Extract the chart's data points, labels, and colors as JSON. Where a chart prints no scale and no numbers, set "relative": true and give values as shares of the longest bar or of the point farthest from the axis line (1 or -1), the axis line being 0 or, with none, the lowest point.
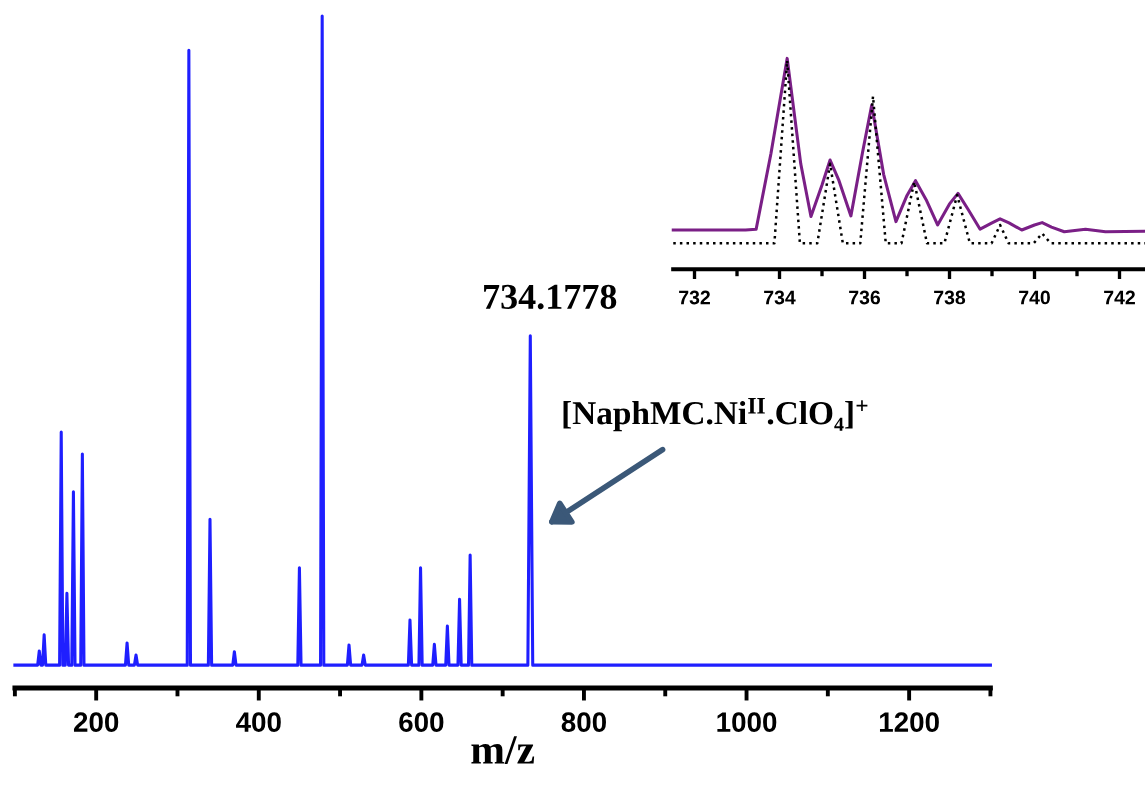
{
  "chart_data": [
    {
      "type": "line",
      "xlabel": "m/z",
      "relative": true,
      "xlim": [
        100,
        1300
      ],
      "xticks": [
        {
          "value": 100,
          "label": null
        },
        200,
        {
          "value": 300,
          "label": null
        },
        400,
        {
          "value": 500,
          "label": null
        },
        600,
        {
          "value": 700,
          "label": null
        },
        800,
        {
          "value": 900,
          "label": null
        },
        1000,
        {
          "value": 1100,
          "label": null
        },
        1200,
        {
          "value": 1300,
          "label": null
        }
      ],
      "tick_labels": "x",
      "grid": false,
      "legend": false,
      "series": [
        {
          "color": "#1f1fff",
          "line_style": "solid",
          "x": [
            100,
            128,
            130,
            132,
            134,
            136,
            138,
            155,
            157,
            159,
            162,
            164,
            166,
            170,
            172,
            174,
            181,
            183,
            185,
            236,
            238,
            240,
            247,
            249,
            251,
            312,
            314,
            316,
            338,
            340,
            342,
            368,
            370,
            372,
            448,
            450,
            452,
            476,
            478,
            480,
            509,
            511,
            513,
            527,
            529,
            531,
            584,
            586,
            588,
            597,
            599,
            601,
            614,
            616,
            618,
            630,
            632,
            634,
            645,
            647,
            649,
            658,
            660,
            662,
            731,
            734,
            737,
            1300
          ],
          "values": [
            0.034,
            0.034,
            0.055,
            0.034,
            0.034,
            0.079,
            0.034,
            0.034,
            0.381,
            0.034,
            0.034,
            0.141,
            0.034,
            0.034,
            0.292,
            0.034,
            0.034,
            0.348,
            0.034,
            0.034,
            0.067,
            0.034,
            0.034,
            0.049,
            0.034,
            0.034,
            0.949,
            0.034,
            0.034,
            0.251,
            0.034,
            0.034,
            0.054,
            0.034,
            0.034,
            0.179,
            0.034,
            0.034,
            1.0,
            0.034,
            0.034,
            0.064,
            0.034,
            0.034,
            0.049,
            0.034,
            0.034,
            0.101,
            0.034,
            0.034,
            0.179,
            0.034,
            0.034,
            0.065,
            0.034,
            0.034,
            0.092,
            0.034,
            0.034,
            0.132,
            0.034,
            0.034,
            0.198,
            0.034,
            0.034,
            0.524,
            0.034,
            0.034
          ]
        }
      ],
      "annotations": [
        {
          "text": "734.1778",
          "x": 734,
          "y": 0.524
        },
        "[NaphMC.Ni$^{II}$.ClO₄]$^{+}$"
      ]
    },
    {
      "type": "line",
      "relative": true,
      "xlim": [
        731.5,
        742.6
      ],
      "xticks": [
        732,
        {
          "value": 733,
          "label": null
        },
        734,
        {
          "value": 735,
          "label": null
        },
        736,
        {
          "value": 737,
          "label": null
        },
        738,
        {
          "value": 739,
          "label": null
        },
        740,
        {
          "value": 741,
          "label": null
        },
        742
      ],
      "tick_labels": "x",
      "grid": false,
      "legend": false,
      "series": [
        {
          "color": "#7a1f86",
          "line_style": "solid",
          "x": [
            731.5,
            733.2,
            733.45,
            733.8,
            734.18,
            734.5,
            734.74,
            735.0,
            735.19,
            735.4,
            735.68,
            735.95,
            736.17,
            736.45,
            736.74,
            737.0,
            737.2,
            737.45,
            737.72,
            738.0,
            738.2,
            738.45,
            738.72,
            739.0,
            739.19,
            739.4,
            739.7,
            740.0,
            740.18,
            740.4,
            740.7,
            741.2,
            741.67,
            742.6
          ],
          "values": [
            0.186,
            0.186,
            0.19,
            0.55,
            1.0,
            0.5,
            0.25,
            0.4,
            0.518,
            0.42,
            0.253,
            0.55,
            0.779,
            0.45,
            0.226,
            0.35,
            0.42,
            0.33,
            0.21,
            0.31,
            0.36,
            0.28,
            0.19,
            0.22,
            0.239,
            0.22,
            0.186,
            0.21,
            0.221,
            0.2,
            0.178,
            0.19,
            0.178,
            0.18
          ]
        },
        {
          "color": "#000000",
          "line_style": "dotted",
          "x": [
            731.5,
            733.88,
            734.18,
            734.48,
            734.89,
            735.19,
            735.49,
            735.9,
            736.2,
            736.5,
            736.87,
            737.17,
            737.47,
            737.88,
            738.18,
            738.48,
            738.99,
            739.19,
            739.39,
            739.98,
            740.18,
            740.38,
            742.6
          ],
          "values": [
            0.123,
            0.123,
            0.99,
            0.123,
            0.123,
            0.5,
            0.123,
            0.123,
            0.82,
            0.123,
            0.123,
            0.415,
            0.123,
            0.123,
            0.352,
            0.123,
            0.123,
            0.21,
            0.123,
            0.123,
            0.17,
            0.123,
            0.123
          ]
        }
      ]
    }
  ]
}
